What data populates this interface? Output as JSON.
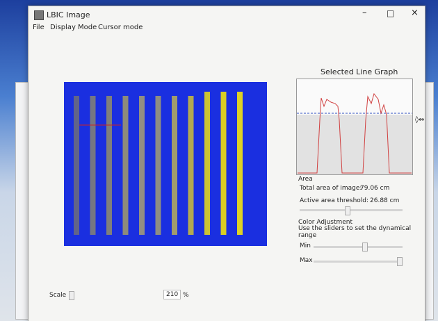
{
  "window": {
    "title": "LBIC Image"
  },
  "menu": [
    "File",
    "Display Mode",
    "Cursor mode"
  ],
  "graph": {
    "title": "Selected Line Graph"
  },
  "area": {
    "heading": "Area",
    "total_label": "Total area of image:",
    "total_value": "79.06 cm",
    "threshold_label": "Active area threshold:",
    "threshold_value": "26.88 cm"
  },
  "color": {
    "heading": "Color Adjustment",
    "hint": "Use the sliders to set the dynamical range",
    "min": "Min",
    "max": "Max"
  },
  "scale": {
    "label": "Scale",
    "value": "210",
    "unit": "%"
  }
}
